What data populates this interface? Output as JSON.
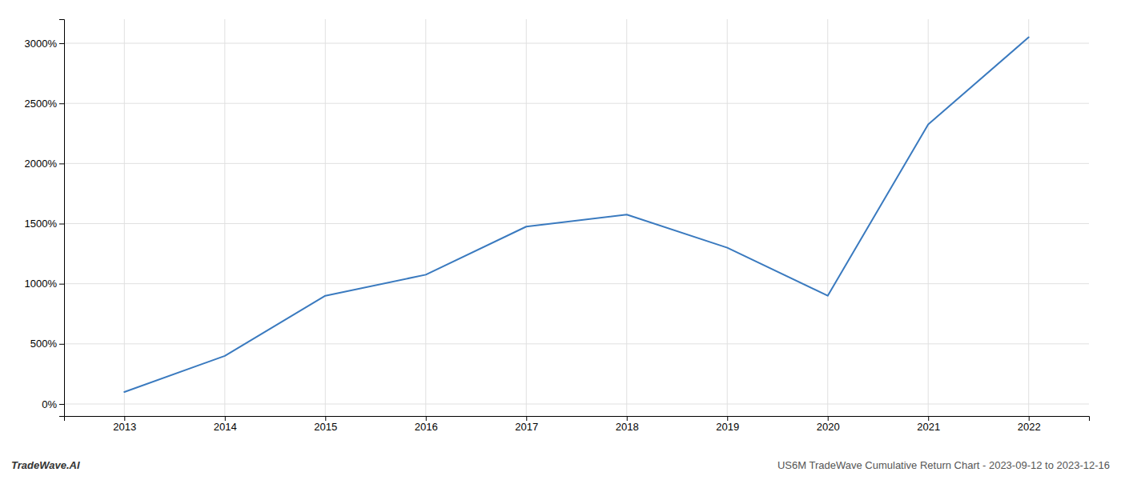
{
  "chart_data": {
    "type": "line",
    "title": "US6M TradeWave Cumulative Return Chart - 2023-09-12 to 2023-12-16",
    "annotations": [
      "TradeWave.AI"
    ],
    "x": [
      2013,
      2014,
      2015,
      2016,
      2017,
      2018,
      2019,
      2020,
      2021,
      2022
    ],
    "values": [
      100,
      400,
      900,
      1075,
      1475,
      1575,
      1300,
      900,
      2325,
      3050
    ],
    "color": "#3a7abf",
    "xlim": [
      2012.4,
      2022.6
    ],
    "ylim": [
      -100,
      3200
    ],
    "xticks": [
      2013,
      2014,
      2015,
      2016,
      2017,
      2018,
      2019,
      2020,
      2021,
      2022
    ],
    "yticks": [
      {
        "value": 0,
        "label": "0%"
      },
      {
        "value": 500,
        "label": "500%"
      },
      {
        "value": 1000,
        "label": "1000%"
      },
      {
        "value": 1500,
        "label": "1500%"
      },
      {
        "value": 2000,
        "label": "2000%"
      },
      {
        "value": 2500,
        "label": "2500%"
      },
      {
        "value": 3000,
        "label": "3000%"
      }
    ],
    "grid": true
  }
}
